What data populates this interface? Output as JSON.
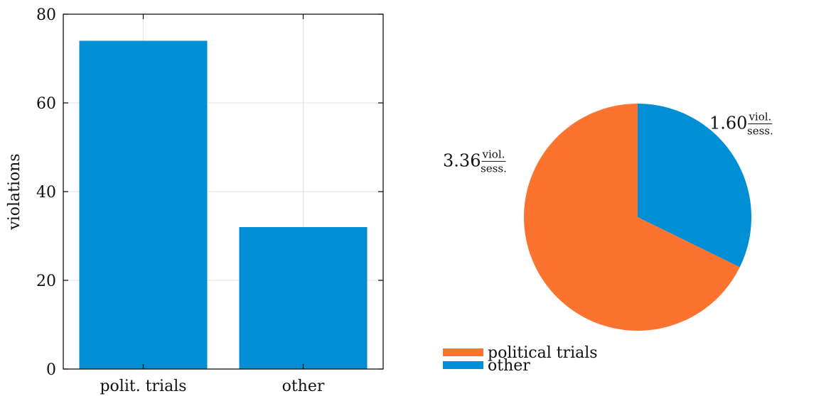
{
  "chart_data": [
    {
      "type": "bar",
      "categories": [
        "polit. trials",
        "other"
      ],
      "values": [
        74,
        32
      ],
      "ylabel": "violations",
      "ylim": [
        0,
        80
      ],
      "yticks": [
        0,
        20,
        40,
        60,
        80
      ],
      "grid": true,
      "color": "#008fd5"
    },
    {
      "type": "pie",
      "slices": [
        {
          "name": "political trials",
          "rate": 3.36,
          "value_label": "3.36",
          "unit_numerator": "viol.",
          "unit_denominator": "sess.",
          "color": "#fc7330"
        },
        {
          "name": "other",
          "rate": 1.6,
          "value_label": "1.60",
          "unit_numerator": "viol.",
          "unit_denominator": "sess.",
          "color": "#008fd5"
        }
      ],
      "legend_position": "bottom-left"
    }
  ]
}
